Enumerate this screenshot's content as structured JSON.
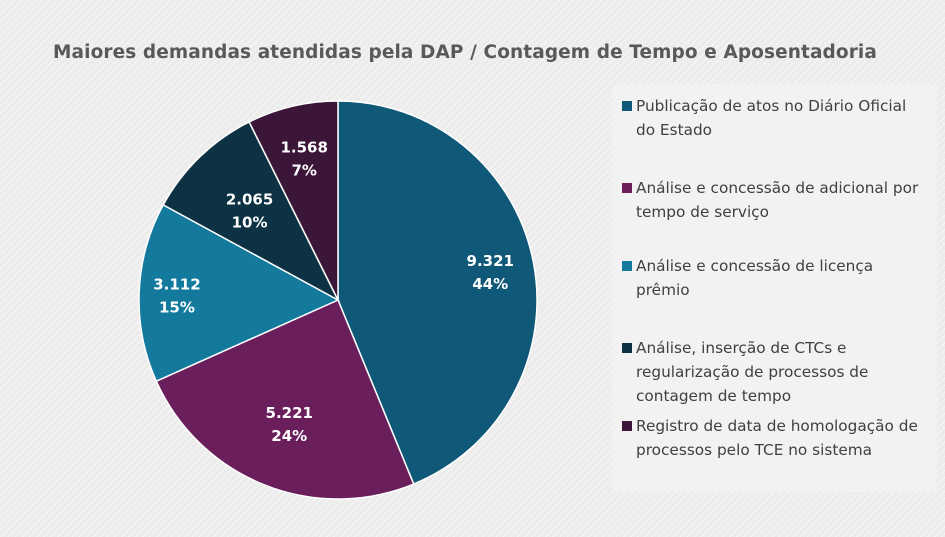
{
  "chart_data": {
    "type": "pie",
    "title": "Maiores demandas atendidas pela DAP / Contagem de Tempo e Aposentadoria",
    "slices": [
      {
        "label": "Publicação de atos no Diário Oficial do Estado",
        "value": 9321,
        "value_label": "9.321",
        "percent_label": "44%",
        "color": "#0f5878"
      },
      {
        "label": "Análise e concessão de adicional por tempo de serviço",
        "value": 5221,
        "value_label": "5.221",
        "percent_label": "24%",
        "color": "#6a1f5c"
      },
      {
        "label": "Análise e concessão de licença prêmio",
        "value": 3112,
        "value_label": "3.112",
        "percent_label": "15%",
        "color": "#137a9e"
      },
      {
        "label": "Análise, inserção de CTCs e regularização de processos de contagem de tempo",
        "value": 2065,
        "value_label": "2.065",
        "percent_label": "10%",
        "color": "#0c3244"
      },
      {
        "label": "Registro de data de homologação de processos pelo TCE no sistema",
        "value": 1568,
        "value_label": "1.568",
        "percent_label": "7%",
        "color": "#3b1638"
      }
    ],
    "legend_position": "right"
  }
}
